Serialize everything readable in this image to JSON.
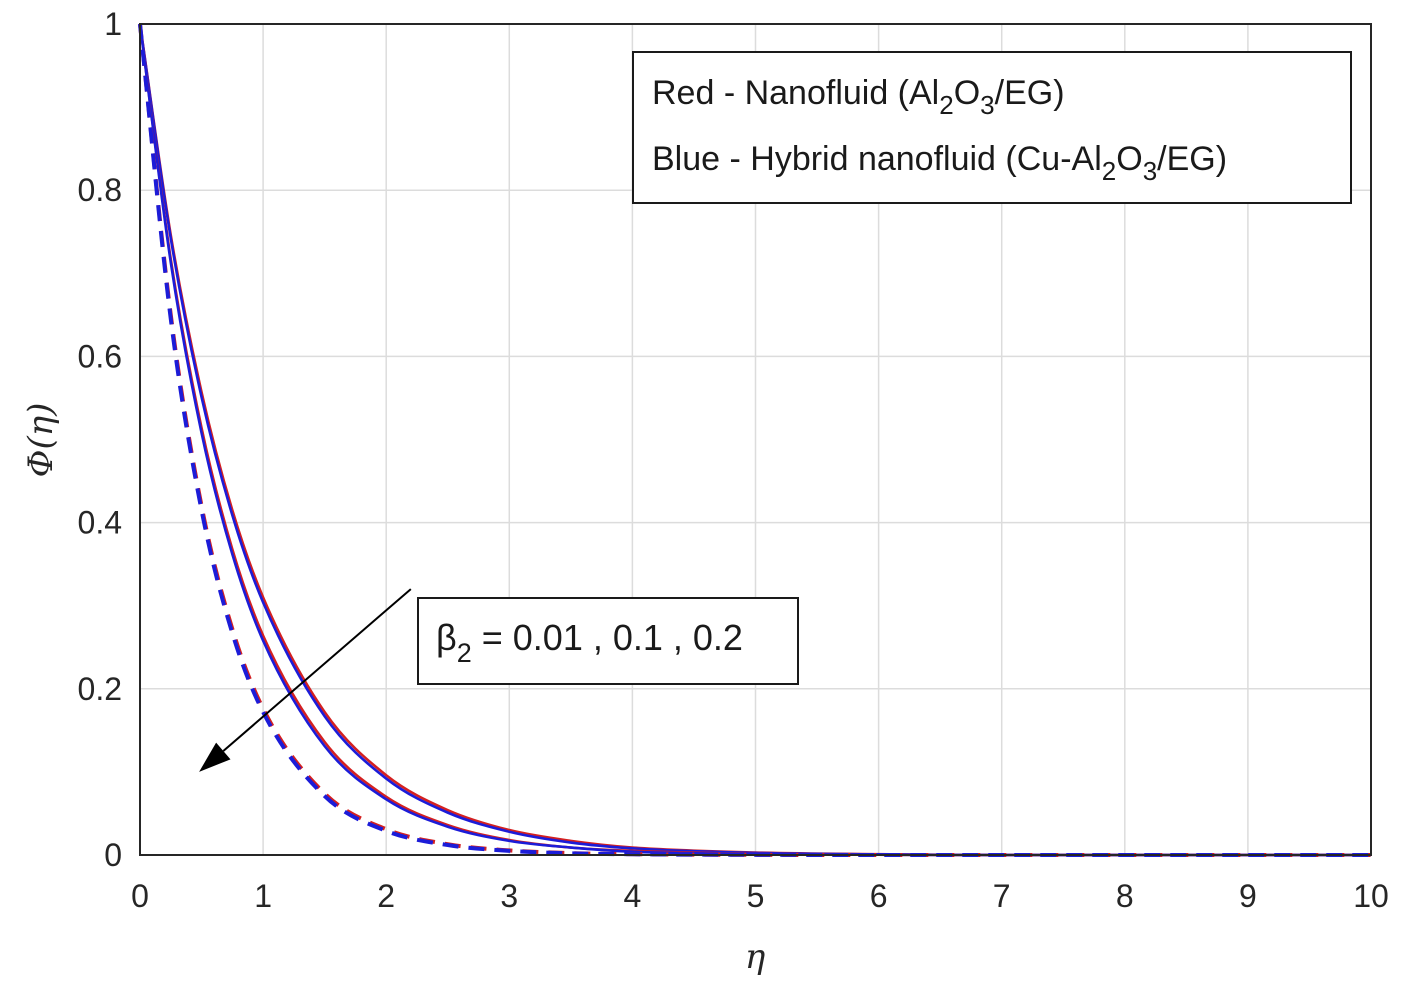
{
  "chart_data": {
    "type": "line",
    "xlabel": "η",
    "ylabel": "Φ(η)",
    "xlim": [
      0,
      10
    ],
    "ylim": [
      0,
      1
    ],
    "xticks": [
      "0",
      "1",
      "2",
      "3",
      "4",
      "5",
      "6",
      "7",
      "8",
      "9",
      "10"
    ],
    "yticks": [
      "0",
      "0.2",
      "0.4",
      "0.6",
      "0.8",
      "1"
    ],
    "grid": true,
    "legend": {
      "placement": "top-right",
      "line1": {
        "prefix": "Red - Nanofluid (Al",
        "sub1": "2",
        "mid": "O",
        "sub2": "3",
        "suffix": "/EG)"
      },
      "line2": {
        "prefix": "Blue - Hybrid nanofluid (Cu-Al",
        "sub1": "2",
        "mid": "O",
        "sub2": "3",
        "suffix": "/EG)"
      }
    },
    "annotation": {
      "symbol": "β",
      "sub": "2",
      "text": " = 0.01 , 0.1 , 0.2",
      "arrow_from": [
        2.2,
        0.32
      ],
      "arrow_to": [
        0.48,
        0.1
      ]
    },
    "colors": {
      "red": "#d42020",
      "blue": "#1c1cd8"
    },
    "x": [
      0,
      0.25,
      0.5,
      0.75,
      1,
      1.5,
      2,
      2.5,
      3,
      3.5,
      4,
      5,
      6,
      7,
      8,
      9,
      10
    ],
    "series": [
      {
        "color": "red",
        "dash": false,
        "values": [
          1,
          0.746,
          0.557,
          0.415,
          0.31,
          0.172,
          0.096,
          0.054,
          0.03,
          0.017,
          0.009,
          0.003,
          0.001,
          0,
          0,
          0,
          0
        ]
      },
      {
        "color": "blue",
        "dash": false,
        "values": [
          1,
          0.742,
          0.551,
          0.409,
          0.304,
          0.167,
          0.092,
          0.051,
          0.028,
          0.015,
          0.008,
          0.0025,
          0.0008,
          0,
          0,
          0,
          0
        ]
      },
      {
        "color": "red",
        "dash": false,
        "values": [
          1,
          0.717,
          0.514,
          0.368,
          0.264,
          0.136,
          0.07,
          0.036,
          0.018,
          0.009,
          0.005,
          0.0013,
          0.0003,
          0,
          0,
          0,
          0
        ]
      },
      {
        "color": "blue",
        "dash": false,
        "values": [
          1,
          0.713,
          0.508,
          0.362,
          0.258,
          0.131,
          0.067,
          0.034,
          0.017,
          0.009,
          0.004,
          0.0012,
          0.0003,
          0,
          0,
          0,
          0
        ]
      },
      {
        "color": "red",
        "dash": true,
        "values": [
          1,
          0.65,
          0.42,
          0.272,
          0.176,
          0.074,
          0.031,
          0.013,
          0.0055,
          0.0023,
          0.001,
          0.0002,
          0,
          0,
          0,
          0,
          0
        ]
      },
      {
        "color": "blue",
        "dash": true,
        "values": [
          1,
          0.645,
          0.415,
          0.267,
          0.172,
          0.071,
          0.029,
          0.012,
          0.005,
          0.002,
          0.0009,
          0.0002,
          0,
          0,
          0,
          0,
          0
        ]
      }
    ]
  }
}
